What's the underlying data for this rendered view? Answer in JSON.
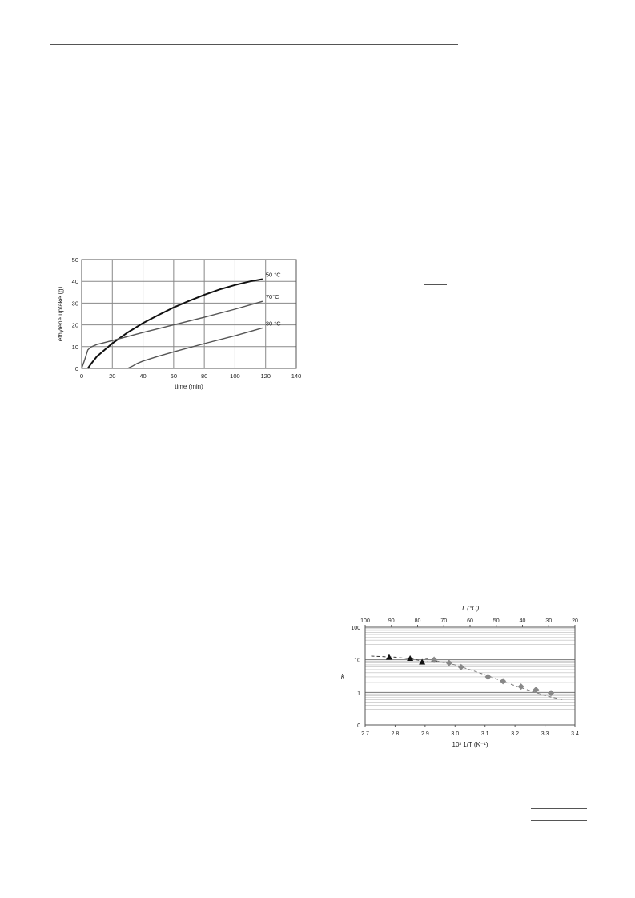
{
  "page": {
    "header_rule": true,
    "decor_rules": 4
  },
  "chart_data": [
    {
      "type": "line",
      "xlabel": "time (min)",
      "ylabel": "ethylene uptake (g)",
      "xlim": [
        0,
        140
      ],
      "ylim": [
        0,
        50
      ],
      "xticks": [
        "0",
        "20",
        "40",
        "60",
        "80",
        "100",
        "120",
        "140"
      ],
      "yticks": [
        "0",
        "10",
        "20",
        "30",
        "40",
        "50"
      ],
      "grid": true,
      "series": [
        {
          "name": "50 °C",
          "color": "#111111",
          "x": [
            4,
            6,
            10,
            20,
            30,
            40,
            50,
            60,
            70,
            80,
            90,
            100,
            110,
            118
          ],
          "y": [
            0,
            2,
            5.5,
            11.5,
            16.5,
            20.8,
            24.5,
            28,
            31,
            33.8,
            36.3,
            38.3,
            40,
            41
          ]
        },
        {
          "name": "70°C",
          "color": "#555555",
          "x": [
            0,
            2,
            4,
            6,
            10,
            20,
            40,
            60,
            80,
            100,
            118
          ],
          "y": [
            0,
            4,
            8.5,
            9.8,
            11,
            12.8,
            16.5,
            20,
            23.5,
            27.2,
            30.8
          ]
        },
        {
          "name": "30 °C",
          "color": "#555555",
          "x": [
            30,
            33,
            36,
            40,
            50,
            60,
            80,
            100,
            118
          ],
          "y": [
            0,
            1,
            2.2,
            3.4,
            5.6,
            7.6,
            11.4,
            15,
            18.6
          ]
        }
      ]
    },
    {
      "type": "scatter",
      "title_top": "T (°C)",
      "xlabel": "10³ 1/T (K⁻¹)",
      "ylabel": "k",
      "xlim": [
        2.7,
        3.4
      ],
      "ylim_log": [
        0,
        100
      ],
      "xticks": [
        "2.7",
        "2.8",
        "2.9",
        "3.0",
        "3.1",
        "3.2",
        "3.3",
        "3.4"
      ],
      "yticks": [
        "0",
        "1",
        "10",
        "100"
      ],
      "top_ticks": [
        "100",
        "90",
        "80",
        "70",
        "60",
        "50",
        "40",
        "30",
        "20"
      ],
      "grid": true,
      "series": [
        {
          "marker": "triangle",
          "color": "#111111",
          "x": [
            2.78,
            2.85,
            2.89,
            2.93
          ],
          "y": [
            12,
            11,
            8.5,
            10
          ]
        },
        {
          "marker": "diamond",
          "color": "#888888",
          "x": [
            2.93,
            2.98,
            3.02,
            3.11,
            3.16,
            3.22,
            3.27,
            3.32
          ],
          "y": [
            10,
            8,
            6,
            3,
            2.2,
            1.5,
            1.2,
            0.95
          ]
        }
      ],
      "fits": [
        {
          "x": [
            2.72,
            2.8,
            2.86,
            2.91
          ],
          "y": [
            13,
            12,
            10.5,
            8.5
          ],
          "color": "#333333"
        },
        {
          "x": [
            2.9,
            3.0,
            3.1,
            3.2,
            3.3,
            3.36
          ],
          "y": [
            11,
            7,
            3.5,
            1.6,
            0.8,
            0.6
          ],
          "color": "#777777"
        }
      ]
    }
  ]
}
